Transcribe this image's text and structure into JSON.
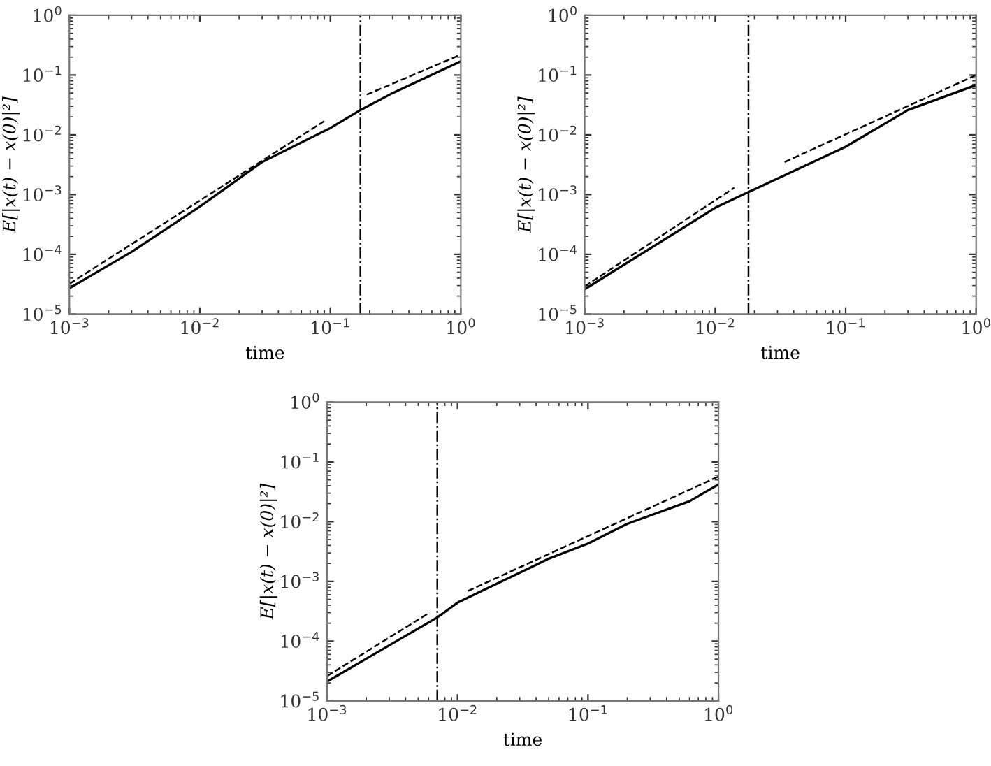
{
  "chart_data": [
    {
      "type": "line",
      "xlabel": "time",
      "ylabel": "E[|x(t) − x(0)|²]",
      "log": "xy",
      "grid": false,
      "xlim": [
        0.001,
        1
      ],
      "ylim": [
        1e-05,
        1
      ],
      "xticks": [
        {
          "value": 0.001,
          "label": "10$^{−3}$"
        },
        {
          "value": 0.01,
          "label": "10$^{−2}$"
        },
        {
          "value": 0.1,
          "label": "10$^{−1}$"
        },
        {
          "value": 1,
          "label": "10$^{0}$"
        }
      ],
      "yticks": [
        {
          "value": 1e-05,
          "label": "10$^{−5}$"
        },
        {
          "value": 0.0001,
          "label": "10$^{−4}$"
        },
        {
          "value": 0.001,
          "label": "10$^{−3}$"
        },
        {
          "value": 0.01,
          "label": "10$^{−2}$"
        },
        {
          "value": 0.1,
          "label": "10$^{−1}$"
        },
        {
          "value": 1,
          "label": "10$^{0}$"
        }
      ],
      "series": [
        {
          "color": "#000000",
          "line_style": "solid",
          "x": [
            0.001,
            0.003,
            0.01,
            0.03,
            0.1,
            0.17,
            0.3,
            1
          ],
          "values": [
            2.7e-05,
            0.00011,
            0.00063,
            0.0035,
            0.013,
            0.026,
            0.05,
            0.17
          ]
        },
        {
          "color": "#000000",
          "line_style": "dashed",
          "x": [
            0.001,
            0.09
          ],
          "values": [
            3.2e-05,
            0.017
          ]
        },
        {
          "color": "#000000",
          "line_style": "dashed",
          "x": [
            0.19,
            1
          ],
          "values": [
            0.047,
            0.22
          ]
        }
      ],
      "ref_lines": [
        {
          "axis": "x",
          "value": 0.17,
          "color": "#000000",
          "line_style": "dashdot"
        }
      ]
    },
    {
      "type": "line",
      "xlabel": "time",
      "ylabel": "E[|x(t) − x(0)|²]",
      "log": "xy",
      "grid": false,
      "xlim": [
        0.001,
        1
      ],
      "ylim": [
        1e-05,
        1
      ],
      "xticks": [
        {
          "value": 0.001,
          "label": "10$^{−3}$"
        },
        {
          "value": 0.01,
          "label": "10$^{−2}$"
        },
        {
          "value": 0.1,
          "label": "10$^{−1}$"
        },
        {
          "value": 1,
          "label": "10$^{0}$"
        }
      ],
      "yticks": [
        {
          "value": 1e-05,
          "label": "10$^{−5}$"
        },
        {
          "value": 0.0001,
          "label": "10$^{−4}$"
        },
        {
          "value": 0.001,
          "label": "10$^{−3}$"
        },
        {
          "value": 0.01,
          "label": "10$^{−2}$"
        },
        {
          "value": 0.1,
          "label": "10$^{−1}$"
        },
        {
          "value": 1,
          "label": "10$^{0}$"
        }
      ],
      "series": [
        {
          "color": "#000000",
          "line_style": "solid",
          "x": [
            0.001,
            0.01,
            0.018,
            0.1,
            0.3,
            1
          ],
          "values": [
            2.6e-05,
            0.0006,
            0.0011,
            0.0063,
            0.026,
            0.068
          ]
        },
        {
          "color": "#000000",
          "line_style": "dashed",
          "x": [
            0.001,
            0.014
          ],
          "values": [
            2.9e-05,
            0.0013
          ]
        },
        {
          "color": "#000000",
          "line_style": "dashed",
          "x": [
            0.034,
            1
          ],
          "values": [
            0.0035,
            0.1
          ]
        }
      ],
      "ref_lines": [
        {
          "axis": "x",
          "value": 0.018,
          "color": "#000000",
          "line_style": "dashdot"
        }
      ]
    },
    {
      "type": "line",
      "xlabel": "time",
      "ylabel": "E[|x(t) − x(0)|²]",
      "log": "xy",
      "grid": false,
      "xlim": [
        0.001,
        1
      ],
      "ylim": [
        1e-05,
        1
      ],
      "xticks": [
        {
          "value": 0.001,
          "label": "10$^{−3}$"
        },
        {
          "value": 0.01,
          "label": "10$^{−2}$"
        },
        {
          "value": 0.1,
          "label": "10$^{−1}$"
        },
        {
          "value": 1,
          "label": "10$^{0}$"
        }
      ],
      "yticks": [
        {
          "value": 1e-05,
          "label": "10$^{−5}$"
        },
        {
          "value": 0.0001,
          "label": "10$^{−4}$"
        },
        {
          "value": 0.001,
          "label": "10$^{−3}$"
        },
        {
          "value": 0.01,
          "label": "10$^{−2}$"
        },
        {
          "value": 0.1,
          "label": "10$^{−1}$"
        },
        {
          "value": 1,
          "label": "10$^{0}$"
        }
      ],
      "series": [
        {
          "color": "#000000",
          "line_style": "solid",
          "x": [
            0.001,
            0.007,
            0.01,
            0.05,
            0.1,
            0.2,
            0.6,
            1
          ],
          "values": [
            2.1e-05,
            0.00025,
            0.00044,
            0.0024,
            0.0043,
            0.0092,
            0.022,
            0.042
          ]
        },
        {
          "color": "#000000",
          "line_style": "dashed",
          "x": [
            0.001,
            0.0061
          ],
          "values": [
            2.6e-05,
            0.0003
          ]
        },
        {
          "color": "#000000",
          "line_style": "dashed",
          "x": [
            0.012,
            1
          ],
          "values": [
            0.00069,
            0.057
          ]
        }
      ],
      "ref_lines": [
        {
          "axis": "x",
          "value": 0.007,
          "color": "#000000",
          "line_style": "dashdot"
        }
      ]
    }
  ]
}
